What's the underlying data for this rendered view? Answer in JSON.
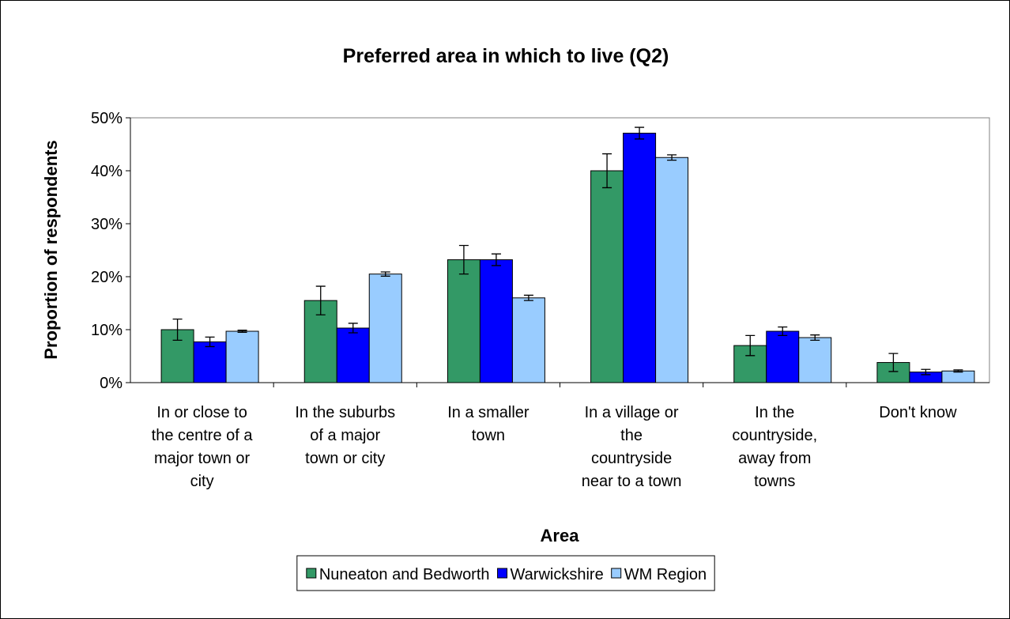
{
  "chart_data": {
    "type": "bar",
    "title": "Preferred area in which to live (Q2)",
    "x_label": "Area",
    "y_label": "Proportion of respondents",
    "categories": [
      "In or close to\nthe centre of a\nmajor town or\ncity",
      "In the suburbs\nof a major\ntown or city",
      "In a smaller\ntown",
      "In a village or\nthe\ncountryside\nnear to a town",
      "In the\ncountryside,\naway from\ntowns",
      "Don't know"
    ],
    "series": [
      {
        "name": "Nuneaton and Bedworth",
        "color": "#339966",
        "values": [
          10,
          15.5,
          23.2,
          40,
          7,
          3.8
        ],
        "errors": [
          2,
          2.7,
          2.7,
          3.2,
          1.9,
          1.7
        ]
      },
      {
        "name": "Warwickshire",
        "color": "#0000ff",
        "values": [
          7.7,
          10.3,
          23.2,
          47.1,
          9.7,
          2
        ],
        "errors": [
          0.9,
          0.9,
          1.1,
          1.1,
          0.8,
          0.5
        ]
      },
      {
        "name": "WM Region",
        "color": "#99ccff",
        "values": [
          9.7,
          20.5,
          16,
          42.5,
          8.5,
          2.2
        ],
        "errors": [
          0.2,
          0.4,
          0.5,
          0.5,
          0.5,
          0.2
        ]
      }
    ],
    "ylim": [
      0,
      50
    ],
    "yticks": [
      {
        "value": 0,
        "label": "0%"
      },
      {
        "value": 10,
        "label": "10%"
      },
      {
        "value": 20,
        "label": "20%"
      },
      {
        "value": 30,
        "label": "30%"
      },
      {
        "value": 40,
        "label": "40%"
      },
      {
        "value": 50,
        "label": "50%"
      }
    ],
    "legend": "bottom"
  }
}
